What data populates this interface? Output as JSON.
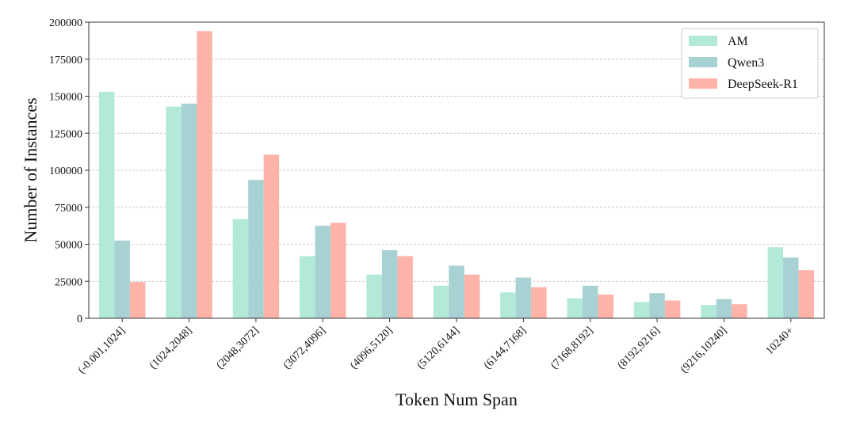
{
  "chart_data": {
    "type": "bar",
    "xlabel": "Token Num Span",
    "ylabel": "Number of Instances",
    "ylim": [
      0,
      200000
    ],
    "yticks": [
      0,
      25000,
      50000,
      75000,
      100000,
      125000,
      150000,
      175000,
      200000
    ],
    "grid": true,
    "legend_position": "top-right",
    "categories": [
      "(-0.001,1024]",
      "(1024,2048]",
      "(2048,3072]",
      "(3072,4096]",
      "(4096,5120]",
      "(5120,6144]",
      "(6144,7168]",
      "(7168,8192]",
      "(8192,9216]",
      "(9216,10240]",
      "10240+"
    ],
    "series": [
      {
        "name": "AM",
        "color": "#b3e9d9",
        "values": [
          153000,
          143000,
          67000,
          42000,
          29500,
          22000,
          17500,
          13500,
          11000,
          9000,
          48000
        ]
      },
      {
        "name": "Qwen3",
        "color": "#a8d1d3",
        "values": [
          52500,
          145000,
          93500,
          62500,
          46000,
          35500,
          27500,
          22000,
          17000,
          13000,
          41000
        ]
      },
      {
        "name": "DeepSeek-R1",
        "color": "#fdb3a8",
        "values": [
          24500,
          194000,
          110500,
          64500,
          42000,
          29500,
          21000,
          16000,
          12000,
          9500,
          32500
        ]
      }
    ]
  }
}
